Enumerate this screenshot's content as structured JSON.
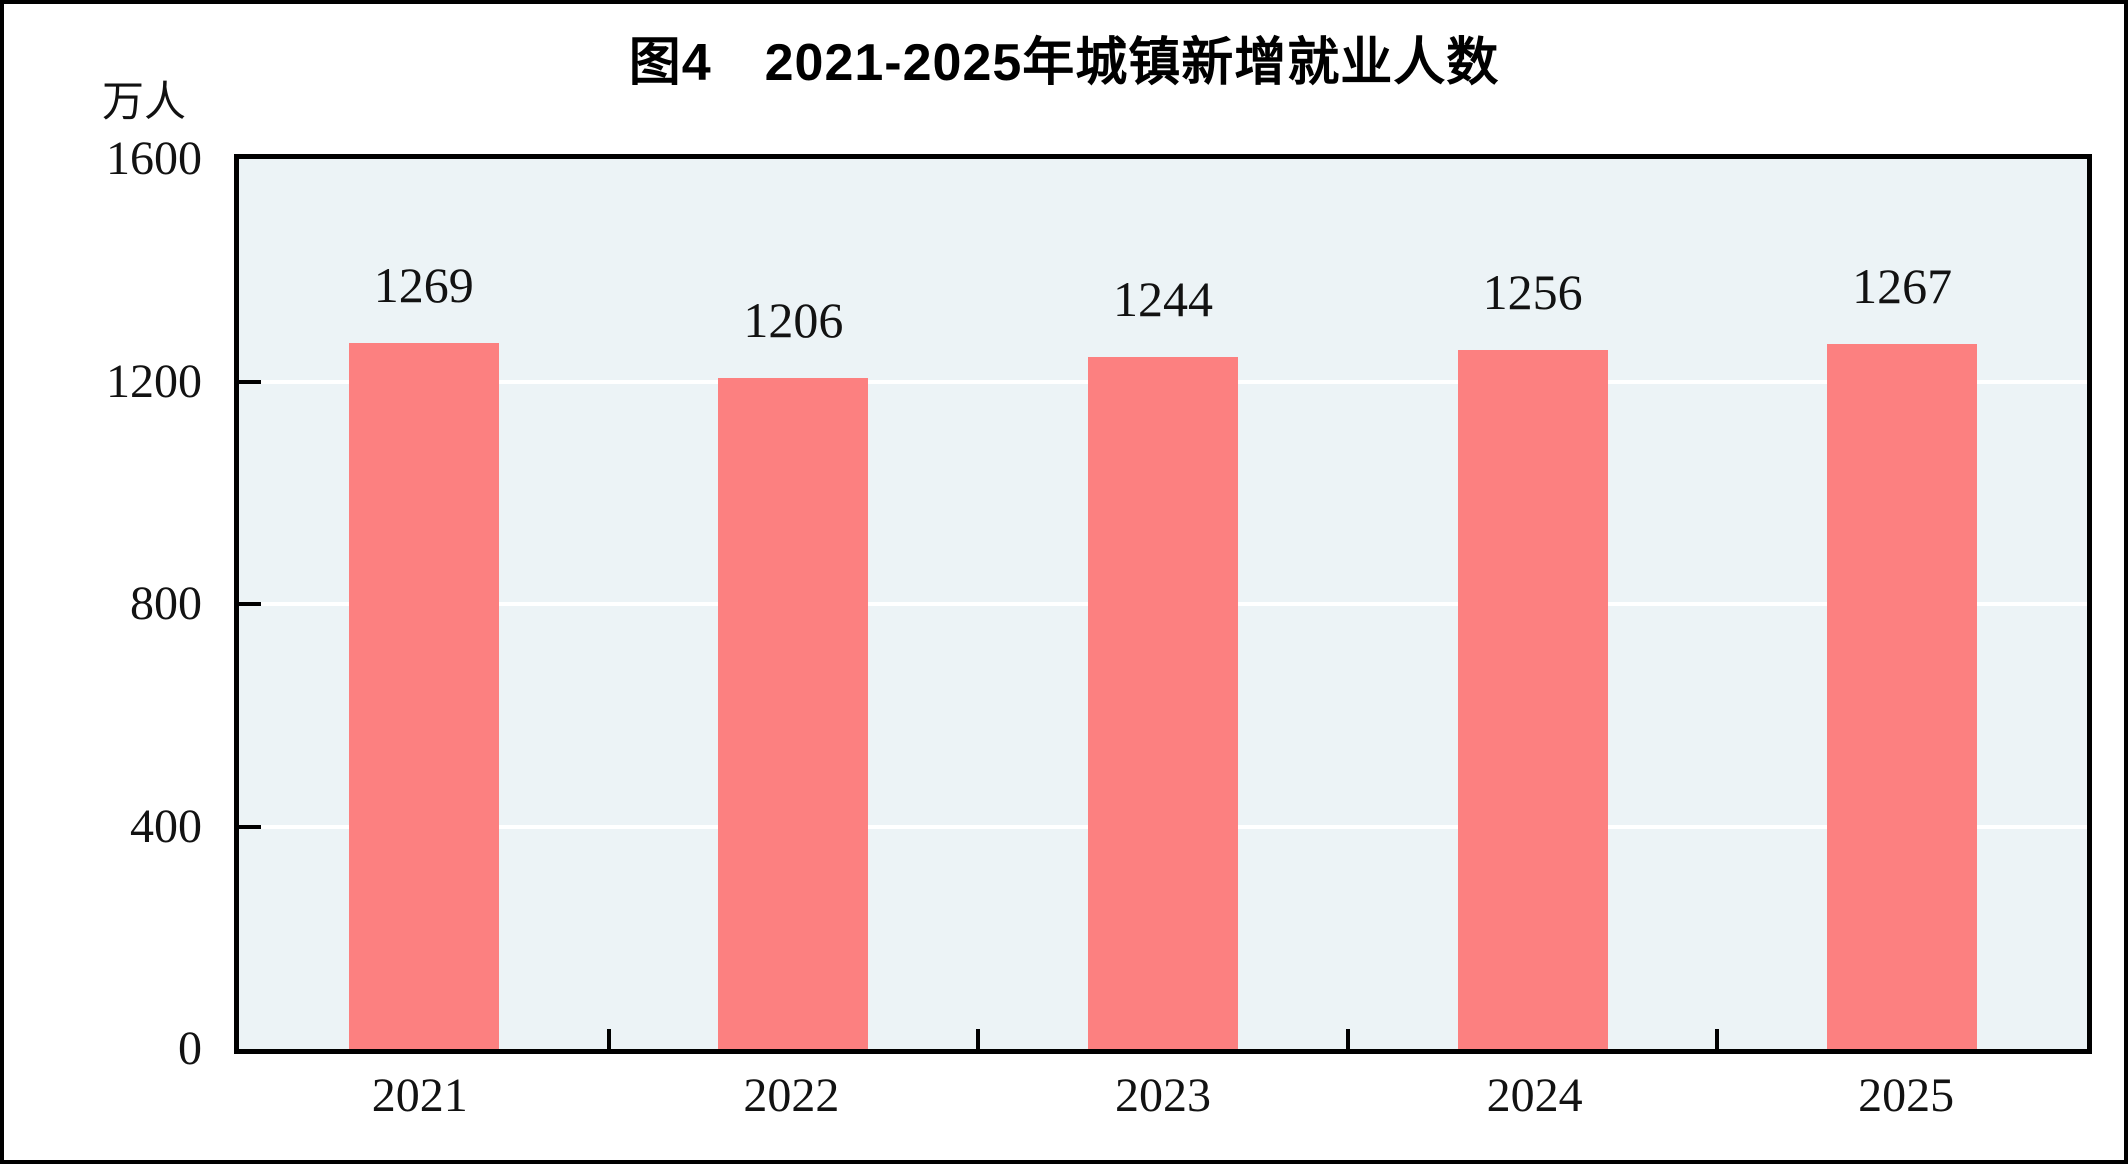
{
  "chart_data": {
    "type": "bar",
    "title": "图4　2021-2025年城镇新增就业人数",
    "figure_number": "图4",
    "title_text": "2021-2025年城镇新增就业人数",
    "unit_label": "万人",
    "categories": [
      "2021",
      "2022",
      "2023",
      "2024",
      "2025"
    ],
    "values": [
      1269,
      1206,
      1244,
      1256,
      1267
    ],
    "xlabel": "",
    "ylabel": "万人",
    "ylim": [
      0,
      1600
    ],
    "yticks": [
      0,
      400,
      800,
      1200,
      1600
    ],
    "grid": true,
    "gridline_color": "#FFFFFF",
    "legend_position": "none",
    "bar_color": "#FC8080",
    "plot_background": "#ECF3F6",
    "axis_color": "#000000",
    "text_color": "#121212"
  }
}
